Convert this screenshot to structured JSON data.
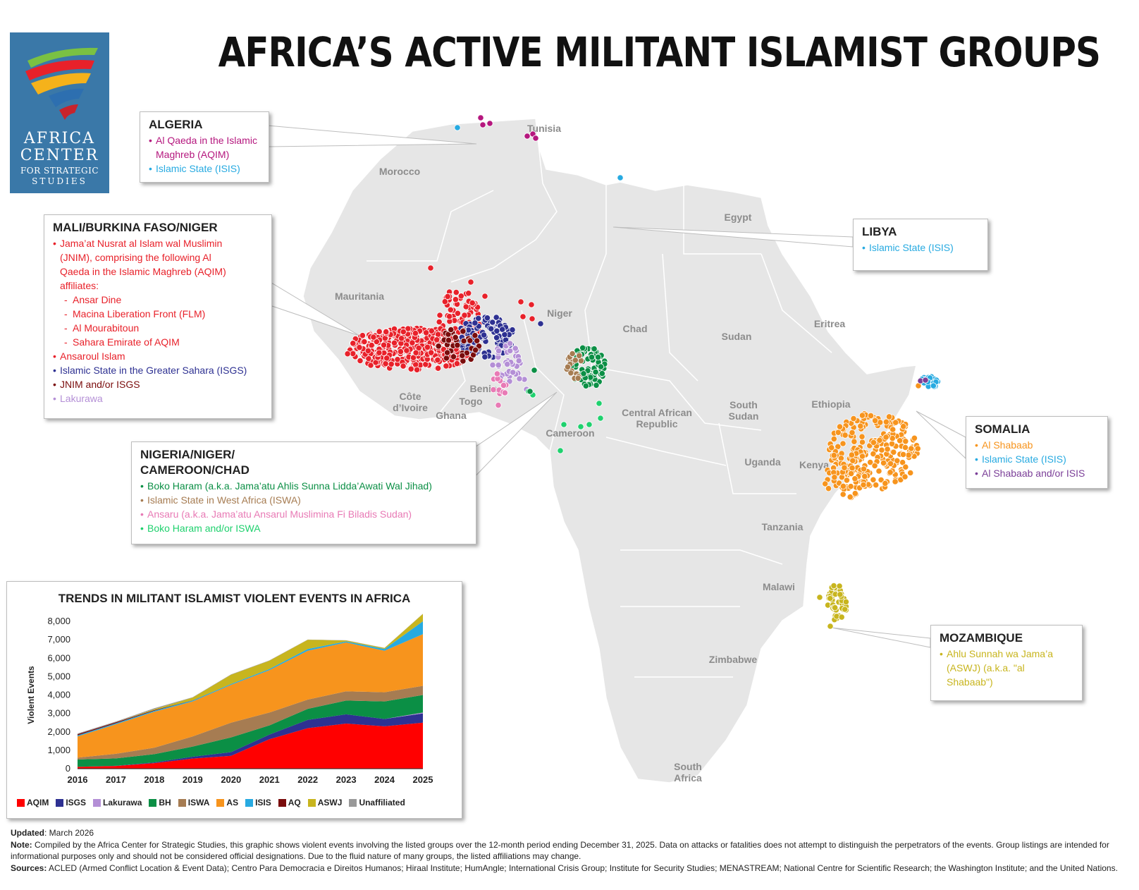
{
  "title": "AFRICA’S ACTIVE MILITANT ISLAMIST GROUPS",
  "logo": {
    "line1": "AFRICA",
    "line2": "CENTER",
    "line3": "FOR STRATEGIC",
    "line4": "STUDIES"
  },
  "colors": {
    "AQIM": "#e8212a",
    "ISGS": "#2e3192",
    "Lakurawa": "#b48fd6",
    "BH": "#0b8f45",
    "ISWA": "#a67c52",
    "AS": "#f7941d",
    "ISIS": "#27aae1",
    "AQ": "#7a0c0c",
    "ASWJ": "#c8b51e",
    "Unaffiliated": "#999999",
    "AQIM_algeria": "#b5177e",
    "BH_or_ISWA": "#1fd16e",
    "Ansaru": "#e87ab5",
    "AS_or_ISIS": "#7b3f98",
    "land": "#e6e6e6",
    "border": "#ffffff"
  },
  "country_labels": [
    {
      "text": "Tunisia"
    },
    {
      "text": "Morocco"
    },
    {
      "text": "Egypt"
    },
    {
      "text": "Mauritania"
    },
    {
      "text": "Niger"
    },
    {
      "text": "Chad"
    },
    {
      "text": "Sudan"
    },
    {
      "text": "Eritrea"
    },
    {
      "text": "Côte"
    },
    {
      "text": "d’Ivoire"
    },
    {
      "text": "Togo"
    },
    {
      "text": "Ghana"
    },
    {
      "text": "Benin"
    },
    {
      "text": "Central African"
    },
    {
      "text": "Republic"
    },
    {
      "text": "South"
    },
    {
      "text": "Sudan"
    },
    {
      "text": "Ethiopia"
    },
    {
      "text": "Cameroon"
    },
    {
      "text": "Uganda"
    },
    {
      "text": "Kenya"
    },
    {
      "text": "Tanzania"
    },
    {
      "text": "Malawi"
    },
    {
      "text": "Zimbabwe"
    },
    {
      "text": "South"
    },
    {
      "text": "Africa"
    }
  ],
  "callouts": {
    "algeria": {
      "title": "ALGERIA",
      "items": [
        {
          "text": "Al Qaeda in the Islamic",
          "color": "#b5177e",
          "bullet": true
        },
        {
          "text": "Maghreb (AQIM)",
          "color": "#b5177e",
          "bullet": false
        },
        {
          "text": "Islamic State (ISIS)",
          "color": "#27aae1",
          "bullet": true
        }
      ]
    },
    "libya": {
      "title": "LIBYA",
      "items": [
        {
          "text": "Islamic State (ISIS)",
          "color": "#27aae1",
          "bullet": true
        }
      ]
    },
    "mali": {
      "title": "MALI/BURKINA FASO/NIGER",
      "items": [
        {
          "text": "Jama’at Nusrat al Islam wal Muslimin",
          "color": "#e8212a",
          "bullet": true
        },
        {
          "text": "(JNIM), comprising the following Al",
          "color": "#e8212a",
          "bullet": false
        },
        {
          "text": "Qaeda in the Islamic Maghreb (AQIM)",
          "color": "#e8212a",
          "bullet": false
        },
        {
          "text": "affiliates:",
          "color": "#e8212a",
          "bullet": false
        },
        {
          "text": "Ansar Dine",
          "color": "#e8212a",
          "sub": true
        },
        {
          "text": "Macina Liberation Front (FLM)",
          "color": "#e8212a",
          "sub": true
        },
        {
          "text": "Al Mourabitoun",
          "color": "#e8212a",
          "sub": true
        },
        {
          "text": "Sahara Emirate of AQIM",
          "color": "#e8212a",
          "sub": true
        },
        {
          "text": "Ansaroul Islam",
          "color": "#e8212a",
          "bullet": true
        },
        {
          "text": "Islamic State in the Greater Sahara (ISGS)",
          "color": "#2e3192",
          "bullet": true
        },
        {
          "text": "JNIM and/or ISGS",
          "color": "#7a0c0c",
          "bullet": true
        },
        {
          "text": "Lakurawa",
          "color": "#b48fd6",
          "bullet": true
        }
      ]
    },
    "nigeria": {
      "title_line1": "NIGERIA/NIGER/",
      "title_line2": "CAMEROON/CHAD",
      "items": [
        {
          "text": "Boko Haram (a.k.a. Jama’atu Ahlis Sunna Lidda’Awati Wal Jihad)",
          "color": "#0b8f45",
          "bullet": true
        },
        {
          "text": "Islamic State in West Africa (ISWA)",
          "color": "#a67c52",
          "bullet": true
        },
        {
          "text": "Ansaru (a.k.a. Jama’atu Ansarul Muslimina Fi Biladis Sudan)",
          "color": "#e87ab5",
          "bullet": true
        },
        {
          "text": "Boko Haram and/or ISWA",
          "color": "#1fd16e",
          "bullet": true
        }
      ]
    },
    "somalia": {
      "title": "SOMALIA",
      "items": [
        {
          "text": "Al Shabaab",
          "color": "#f7941d",
          "bullet": true
        },
        {
          "text": "Islamic State (ISIS)",
          "color": "#27aae1",
          "bullet": true
        },
        {
          "text": "Al Shabaab and/or ISIS",
          "color": "#7b3f98",
          "bullet": true
        }
      ]
    },
    "mozambique": {
      "title": "MOZAMBIQUE",
      "items": [
        {
          "text": "Ahlu Sunnah wa Jama’a",
          "color": "#c8b51e",
          "bullet": true
        },
        {
          "text": "(ASWJ) (a.k.a. \"al",
          "color": "#c8b51e",
          "bullet": false
        },
        {
          "text": "Shabaab\")",
          "color": "#c8b51e",
          "bullet": false
        }
      ]
    }
  },
  "chart_data": {
    "type": "area",
    "title": "TRENDS IN MILITANT ISLAMIST VIOLENT EVENTS IN AFRICA",
    "ylabel": "Violent Events",
    "xlabel": "",
    "ylim": [
      0,
      8000
    ],
    "yticks": [
      "0",
      "1,000",
      "2,000",
      "3,000",
      "4,000",
      "5,000",
      "6,000",
      "7,000",
      "8,000"
    ],
    "x": [
      "2016",
      "2017",
      "2018",
      "2019",
      "2020",
      "2021",
      "2022",
      "2023",
      "2024",
      "2025"
    ],
    "stacked": true,
    "series": [
      {
        "name": "AQIM",
        "color": "#ff0000",
        "values": [
          100,
          150,
          300,
          550,
          700,
          1600,
          2200,
          2450,
          2300,
          2500
        ]
      },
      {
        "name": "ISGS",
        "color": "#2e3192",
        "values": [
          0,
          10,
          40,
          100,
          200,
          250,
          450,
          500,
          400,
          500
        ]
      },
      {
        "name": "Lakurawa",
        "color": "#b48fd6",
        "values": [
          0,
          0,
          0,
          0,
          0,
          0,
          0,
          0,
          0,
          50
        ]
      },
      {
        "name": "BH",
        "color": "#0b8f45",
        "values": [
          400,
          400,
          450,
          550,
          800,
          500,
          600,
          750,
          950,
          950
        ]
      },
      {
        "name": "ISWA",
        "color": "#a67c52",
        "values": [
          100,
          250,
          350,
          550,
          800,
          700,
          500,
          500,
          500,
          500
        ]
      },
      {
        "name": "AS",
        "color": "#f7941d",
        "values": [
          1150,
          1600,
          1950,
          1900,
          2050,
          2300,
          2650,
          2650,
          2250,
          2800
        ]
      },
      {
        "name": "ISIS",
        "color": "#27aae1",
        "values": [
          60,
          60,
          60,
          50,
          50,
          60,
          100,
          60,
          100,
          700
        ]
      },
      {
        "name": "AQ",
        "color": "#7a0c0c",
        "values": [
          60,
          50,
          30,
          10,
          0,
          0,
          0,
          0,
          0,
          0
        ]
      },
      {
        "name": "ASWJ",
        "color": "#c8b51e",
        "values": [
          0,
          0,
          50,
          150,
          500,
          450,
          500,
          50,
          50,
          400
        ]
      },
      {
        "name": "Unaffiliated",
        "color": "#999999",
        "values": [
          40,
          40,
          50,
          20,
          20,
          20,
          10,
          10,
          10,
          10
        ]
      }
    ]
  },
  "footer": {
    "updated_label": "Updated",
    "updated_value": ": March 2026",
    "note_label": "Note:",
    "note_text": " Compiled by the Africa Center for Strategic Studies, this graphic shows violent events involving the listed groups over the 12-month period ending December 31, 2025. Data on attacks or fatalities does not attempt to distinguish the perpetrators of the events. Group listings are intended for informational purposes only and should not be considered official designations. Due to the fluid nature of many groups, the listed affiliations may change.",
    "sources_label": "Sources:",
    "sources_text": " ACLED (Armed Conflict Location & Event Data); Centro Para Democracia e Direitos Humanos; Hiraal Institute; HumAngle; International Crisis Group;  Institute for Security Studies; MENASTREAM; National Centre for Scientific Research; the Washington Institute; and the United Nations."
  }
}
